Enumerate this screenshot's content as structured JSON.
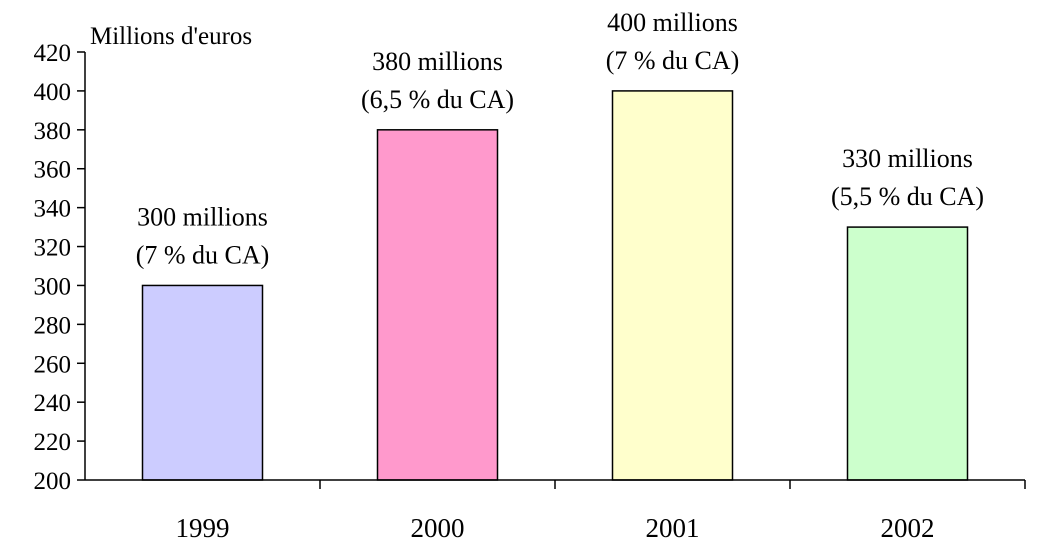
{
  "chart_data": {
    "type": "bar",
    "title": "",
    "xlabel": "",
    "ylabel": "Millions d'euros",
    "ylim": [
      200,
      420
    ],
    "ytick_step": 20,
    "grid": false,
    "legend": false,
    "categories": [
      "1999",
      "2000",
      "2001",
      "2002"
    ],
    "values": [
      300,
      380,
      400,
      330
    ],
    "bar_colors": [
      "#ccccff",
      "#ff99cc",
      "#ffffcc",
      "#ccffcc"
    ],
    "data_labels": [
      [
        "300 millions",
        "(7 % du CA)"
      ],
      [
        "380 millions",
        "(6,5 % du CA)"
      ],
      [
        "400 millions",
        "(7 % du CA)"
      ],
      [
        "330 millions",
        "(5,5 % du CA)"
      ]
    ]
  }
}
